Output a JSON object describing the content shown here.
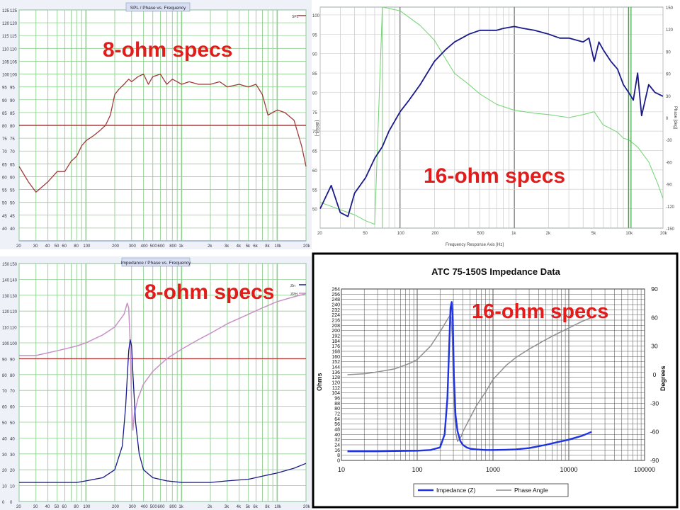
{
  "spec_labels": {
    "tl": "8-ohm specs",
    "tr": "16-ohm specs",
    "bl": "8-ohm specs",
    "br": "16-ohm specs"
  },
  "colors": {
    "label_red": "#e21b1b",
    "grid_green": "#8fcf8f",
    "spl_red": "#a03a3a",
    "navy": "#1a1a8a",
    "phase_green": "#7ad67a",
    "imp_blue": "#1f33e0",
    "phase_gray": "#909090",
    "imp_pink": "#c890c8"
  },
  "chart_data": [
    {
      "type": "line",
      "title": "SPL / Phase vs. Frequency",
      "x_scale": "log",
      "xlim": [
        20,
        20000
      ],
      "ylim": [
        35,
        125
      ],
      "grid": true,
      "legend": "top-right",
      "legend_entries": [
        "SPL"
      ],
      "y_ticks": [
        "125",
        "120",
        "115",
        "110",
        "105",
        "100",
        "95",
        "90",
        "85",
        "80",
        "75",
        "70",
        "65",
        "60",
        "55",
        "50",
        "45",
        "40"
      ],
      "x_ticks": [
        "20",
        "30",
        "40",
        "50",
        "60",
        "80",
        "100",
        "200",
        "300",
        "400",
        "500",
        "600",
        "800",
        "1k",
        "2k",
        "3k",
        "4k",
        "5k",
        "6k",
        "8k",
        "10k",
        "20k"
      ],
      "ref_line_y": 80,
      "series": [
        {
          "name": "SPL",
          "x": [
            20,
            25,
            30,
            40,
            50,
            60,
            70,
            80,
            90,
            100,
            120,
            140,
            160,
            180,
            200,
            220,
            250,
            280,
            300,
            350,
            400,
            450,
            500,
            600,
            700,
            800,
            900,
            1000,
            1200,
            1500,
            2000,
            2500,
            3000,
            4000,
            5000,
            6000,
            7000,
            8000,
            10000,
            12000,
            15000,
            18000,
            20000
          ],
          "y": [
            64,
            58,
            54,
            58,
            62,
            62,
            66,
            68,
            72,
            74,
            76,
            78,
            80,
            84,
            92,
            94,
            96,
            98,
            97,
            99,
            100,
            96,
            99,
            100,
            96,
            98,
            97,
            96,
            97,
            96,
            96,
            97,
            95,
            96,
            95,
            96,
            92,
            84,
            86,
            85,
            82,
            72,
            64
          ]
        }
      ]
    },
    {
      "type": "line",
      "xlabel": "Frequency Response Axis [Hz]",
      "ylabel": "[dBSPL]",
      "y2label": "Phase [deg]",
      "x_scale": "log",
      "xlim": [
        20,
        20000
      ],
      "ylim": [
        45,
        102
      ],
      "y2lim": [
        -150,
        150
      ],
      "grid": true,
      "y_ticks": [
        "100",
        "95",
        "90",
        "85",
        "80",
        "75",
        "70",
        "65",
        "60",
        "55",
        "50"
      ],
      "y2_ticks": [
        "150",
        "120",
        "90",
        "60",
        "30",
        "0",
        "-30",
        "-60",
        "-90",
        "-120",
        "-150"
      ],
      "x_ticks": [
        "20",
        "50",
        "100",
        "200",
        "500",
        "1k",
        "2k",
        "5k",
        "10k",
        "20k"
      ],
      "series": [
        {
          "name": "SPL",
          "x": [
            20,
            25,
            30,
            35,
            40,
            50,
            60,
            70,
            80,
            100,
            120,
            150,
            200,
            250,
            300,
            400,
            500,
            600,
            700,
            800,
            1000,
            1200,
            1500,
            2000,
            2500,
            3000,
            4000,
            4500,
            5000,
            5500,
            6000,
            7000,
            8000,
            9000,
            10000,
            11000,
            12000,
            13000,
            15000,
            17000,
            20000
          ],
          "y": [
            50,
            56,
            49,
            48,
            54,
            58,
            63,
            66,
            70,
            75,
            78,
            82,
            88,
            91,
            93,
            95,
            96,
            96,
            96,
            96.5,
            97,
            96.5,
            96,
            95,
            94,
            94,
            93,
            94,
            88,
            93,
            91,
            88,
            86,
            82,
            80,
            78,
            85,
            74,
            82,
            80,
            79
          ]
        },
        {
          "name": "Phase",
          "axis": "right",
          "x": [
            20,
            30,
            40,
            50,
            60,
            70,
            100,
            150,
            200,
            250,
            300,
            400,
            500,
            700,
            1000,
            1500,
            2000,
            3000,
            4000,
            5000,
            6000,
            7000,
            8000,
            9000,
            10000,
            12000,
            15000,
            18000,
            20000
          ],
          "y": [
            -115,
            -125,
            -132,
            -140,
            -145,
            150,
            145,
            125,
            105,
            80,
            60,
            45,
            32,
            18,
            10,
            6,
            4,
            0,
            4,
            8,
            -10,
            -15,
            -20,
            -28,
            -30,
            -40,
            -60,
            -90,
            -110
          ]
        }
      ]
    },
    {
      "type": "line",
      "title": "Impedance / Phase vs. Frequency",
      "x_scale": "log",
      "xlim": [
        20,
        20000
      ],
      "ylim": [
        0,
        150
      ],
      "grid": true,
      "legend": "top-right",
      "legend_entries": [
        "Zin",
        "ZPH"
      ],
      "y_ticks": [
        "150",
        "140",
        "130",
        "120",
        "110",
        "100",
        "90",
        "80",
        "70",
        "60",
        "50",
        "40",
        "30",
        "20",
        "10",
        "0"
      ],
      "x_ticks": [
        "20",
        "30",
        "40",
        "50",
        "60",
        "80",
        "100",
        "200",
        "300",
        "400",
        "500",
        "600",
        "800",
        "1k",
        "2k",
        "3k",
        "4k",
        "5k",
        "6k",
        "8k",
        "10k",
        "20k"
      ],
      "ref_line_y": 90,
      "series": [
        {
          "name": "Zin",
          "x": [
            20,
            40,
            60,
            80,
            100,
            150,
            200,
            240,
            260,
            280,
            290,
            300,
            310,
            330,
            360,
            400,
            500,
            700,
            1000,
            1500,
            2000,
            3000,
            5000,
            7000,
            10000,
            15000,
            20000
          ],
          "y": [
            12,
            12,
            12,
            12,
            13,
            15,
            20,
            35,
            60,
            95,
            102,
            98,
            80,
            50,
            30,
            20,
            15,
            13,
            12,
            12,
            12,
            13,
            14,
            16,
            18,
            21,
            24
          ]
        },
        {
          "name": "ZPH",
          "x": [
            20,
            30,
            50,
            80,
            100,
            150,
            200,
            250,
            270,
            280,
            290,
            300,
            310,
            320,
            350,
            400,
            500,
            700,
            1000,
            1500,
            2000,
            3000,
            5000,
            7000,
            10000,
            15000,
            20000
          ],
          "y": [
            92,
            92,
            95,
            98,
            100,
            105,
            110,
            118,
            125,
            122,
            100,
            60,
            45,
            55,
            65,
            74,
            82,
            90,
            96,
            102,
            106,
            112,
            118,
            122,
            126,
            129,
            131
          ]
        }
      ]
    },
    {
      "type": "line",
      "title": "ATC 75-150S Impedance Data",
      "ylabel": "Ohms",
      "y2label": "Degrees",
      "x_scale": "log",
      "xlim": [
        10,
        100000
      ],
      "ylim": [
        0,
        264
      ],
      "y2lim": [
        -90,
        90
      ],
      "grid": true,
      "legend": "bottom",
      "x_ticks": [
        "10",
        "100",
        "1000",
        "10000",
        "100000"
      ],
      "y_ticks": [
        "264",
        "256",
        "248",
        "240",
        "232",
        "224",
        "216",
        "208",
        "200",
        "192",
        "184",
        "176",
        "168",
        "160",
        "152",
        "144",
        "136",
        "128",
        "120",
        "112",
        "104",
        "96",
        "88",
        "80",
        "72",
        "64",
        "56",
        "48",
        "40",
        "32",
        "24",
        "16",
        "8",
        "0"
      ],
      "y2_ticks": [
        "90",
        "60",
        "30",
        "0",
        "-30",
        "-60",
        "-90"
      ],
      "series": [
        {
          "name": "Impedance (Z)",
          "x": [
            12,
            30,
            60,
            100,
            150,
            200,
            230,
            250,
            265,
            275,
            285,
            295,
            305,
            320,
            340,
            370,
            400,
            450,
            500,
            600,
            800,
            1000,
            1500,
            2000,
            3000,
            5000,
            7000,
            10000,
            15000,
            20000
          ],
          "y": [
            14,
            14,
            14.5,
            15,
            16,
            20,
            40,
            95,
            180,
            235,
            244,
            215,
            130,
            70,
            45,
            30,
            24,
            20,
            18,
            17,
            16,
            16,
            16.5,
            17,
            19,
            24,
            28,
            32,
            38,
            44
          ]
        },
        {
          "name": "Phase Angle",
          "axis": "right",
          "x": [
            12,
            20,
            30,
            50,
            80,
            100,
            150,
            200,
            250,
            270,
            280,
            290,
            300,
            320,
            340,
            380,
            400,
            500,
            600,
            800,
            1000,
            1500,
            2000,
            3000,
            5000,
            7000,
            10000,
            15000,
            20000
          ],
          "y": [
            0,
            1,
            3,
            6,
            12,
            16,
            30,
            45,
            58,
            62,
            60,
            40,
            -10,
            -60,
            -70,
            -65,
            -60,
            -45,
            -33,
            -18,
            -5,
            10,
            18,
            27,
            37,
            43,
            49,
            56,
            60
          ]
        }
      ]
    }
  ]
}
